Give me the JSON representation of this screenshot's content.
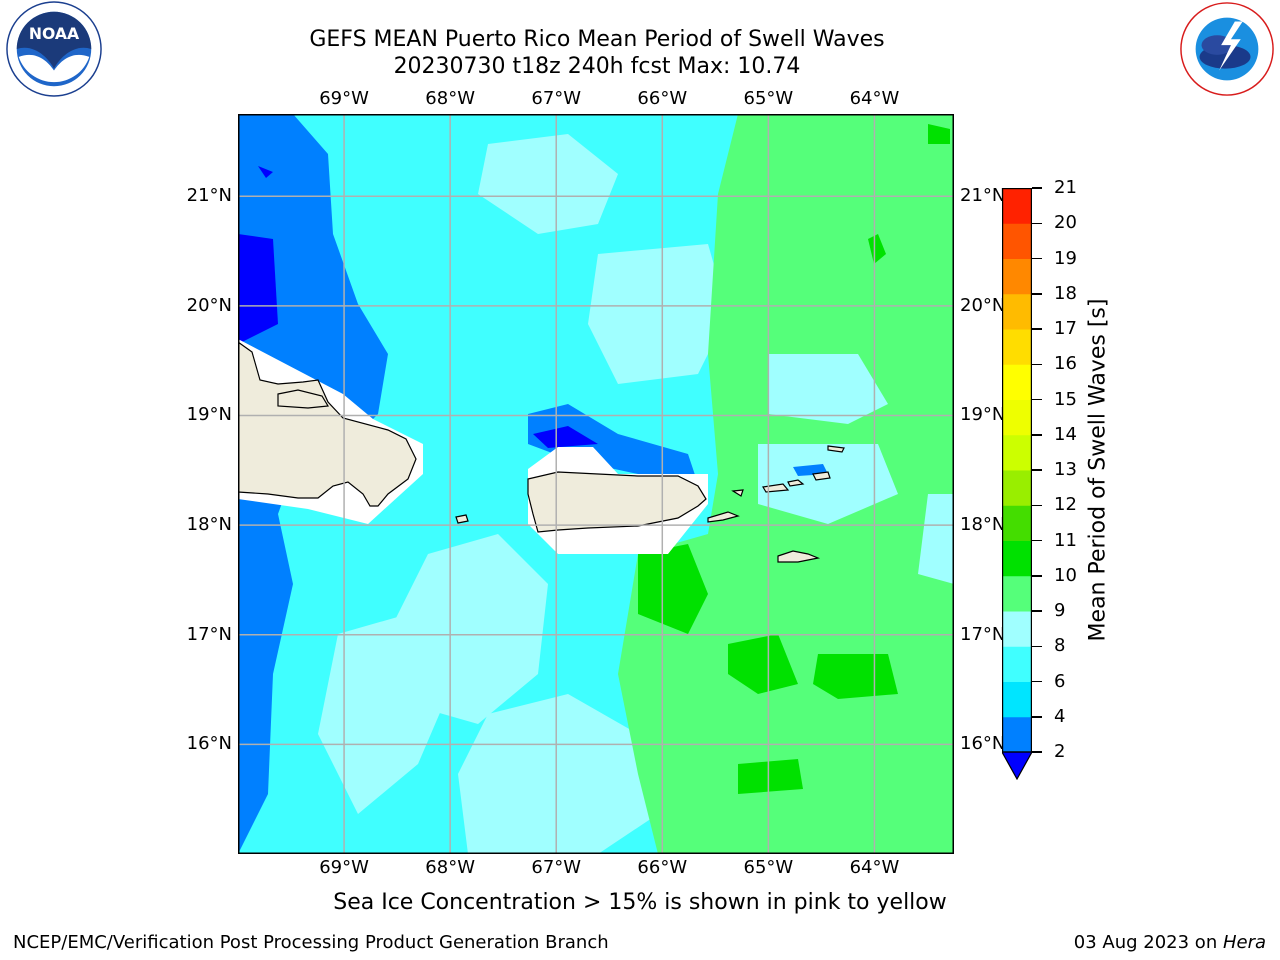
{
  "title": {
    "line1": "GEFS MEAN Puerto Rico Mean Period of Swell Waves",
    "line2": "20230730 t18z 240h fcst   Max: 10.74"
  },
  "map": {
    "lon_range": [
      -70.0,
      -63.25
    ],
    "lat_range": [
      15.0,
      21.75
    ],
    "lon_ticks": [
      {
        "lon": -69,
        "label": "69°W"
      },
      {
        "lon": -68,
        "label": "68°W"
      },
      {
        "lon": -67,
        "label": "67°W"
      },
      {
        "lon": -66,
        "label": "66°W"
      },
      {
        "lon": -65,
        "label": "65°W"
      },
      {
        "lon": -64,
        "label": "64°W"
      }
    ],
    "lat_ticks": [
      {
        "lat": 21,
        "label": "21°N"
      },
      {
        "lat": 20,
        "label": "20°N"
      },
      {
        "lat": 19,
        "label": "19°N"
      },
      {
        "lat": 18,
        "label": "18°N"
      },
      {
        "lat": 17,
        "label": "17°N"
      },
      {
        "lat": 16,
        "label": "16°N"
      }
    ],
    "grid": true,
    "colors": {
      "land": "#efecdc",
      "coast": "#000000",
      "grid": "#b0b0b0",
      "nodata": "#ffffff"
    }
  },
  "colorbar": {
    "title": "Mean Period of Swell Waves [s]",
    "extend": "min",
    "levels": [
      2,
      4,
      6,
      8,
      9,
      10,
      11,
      12,
      13,
      14,
      15,
      16,
      17,
      18,
      19,
      20,
      21
    ],
    "labels": [
      "2",
      "4",
      "6",
      "8",
      "9",
      "10",
      "11",
      "12",
      "13",
      "14",
      "15",
      "16",
      "17",
      "18",
      "19",
      "20",
      "21"
    ],
    "colors": [
      "#0080ff",
      "#00e5ff",
      "#40ffff",
      "#a0ffff",
      "#55ff7a",
      "#00e100",
      "#44dd00",
      "#99ee00",
      "#ccff00",
      "#eeff00",
      "#ffff00",
      "#ffdd00",
      "#ffbb00",
      "#ff8800",
      "#ff5500",
      "#ff2200"
    ],
    "under_color": "#0000ff"
  },
  "footnote": "Sea Ice Concentration > 15% is shown in pink to yellow",
  "credit": "NCEP/EMC/Verification Post Processing Product Generation Branch",
  "date": "03 Aug 2023 on ",
  "host": "Hera"
}
